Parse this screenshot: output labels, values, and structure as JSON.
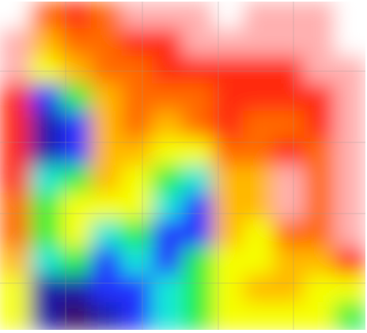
{
  "chart_data": {
    "type": "heatmap",
    "zlim": [
      0,
      10
    ],
    "colors": [
      "#ffffff",
      "#ffb0b0",
      "#ff2a10",
      "#ff6a00",
      "#ffb800",
      "#f6ff00",
      "#22f03c",
      "#18e8d8",
      "#2233ff",
      "#1a1aa8",
      "#380b5a"
    ],
    "values": [
      [
        0,
        3,
        2,
        3,
        1,
        1,
        1,
        0,
        1,
        1,
        1,
        0
      ],
      [
        1,
        4,
        3,
        3,
        2,
        2,
        1,
        1,
        1,
        1,
        1,
        0
      ],
      [
        1,
        5,
        4,
        3,
        3,
        2,
        2,
        2,
        2,
        2,
        1,
        1
      ],
      [
        2,
        8,
        6,
        4,
        3,
        3,
        3,
        2,
        2,
        2,
        2,
        1
      ],
      [
        2,
        9,
        8,
        4,
        3,
        4,
        3,
        2,
        3,
        3,
        2,
        1
      ],
      [
        2,
        9,
        8,
        4,
        4,
        5,
        5,
        3,
        3,
        2,
        3,
        1
      ],
      [
        2,
        7,
        6,
        4,
        5,
        6,
        7,
        4,
        4,
        1,
        3,
        1
      ],
      [
        3,
        6,
        5,
        5,
        5,
        7,
        8,
        4,
        4,
        1,
        3,
        1
      ],
      [
        3,
        6,
        5,
        7,
        6,
        8,
        8,
        4,
        5,
        3,
        3,
        1
      ],
      [
        4,
        7,
        6,
        8,
        7,
        8,
        6,
        5,
        5,
        4,
        4,
        2
      ],
      [
        5,
        9,
        9,
        8,
        8,
        7,
        6,
        5,
        4,
        4,
        5,
        5
      ],
      [
        5,
        9,
        10,
        9,
        8,
        7,
        6,
        5,
        5,
        5,
        5,
        6
      ]
    ]
  }
}
